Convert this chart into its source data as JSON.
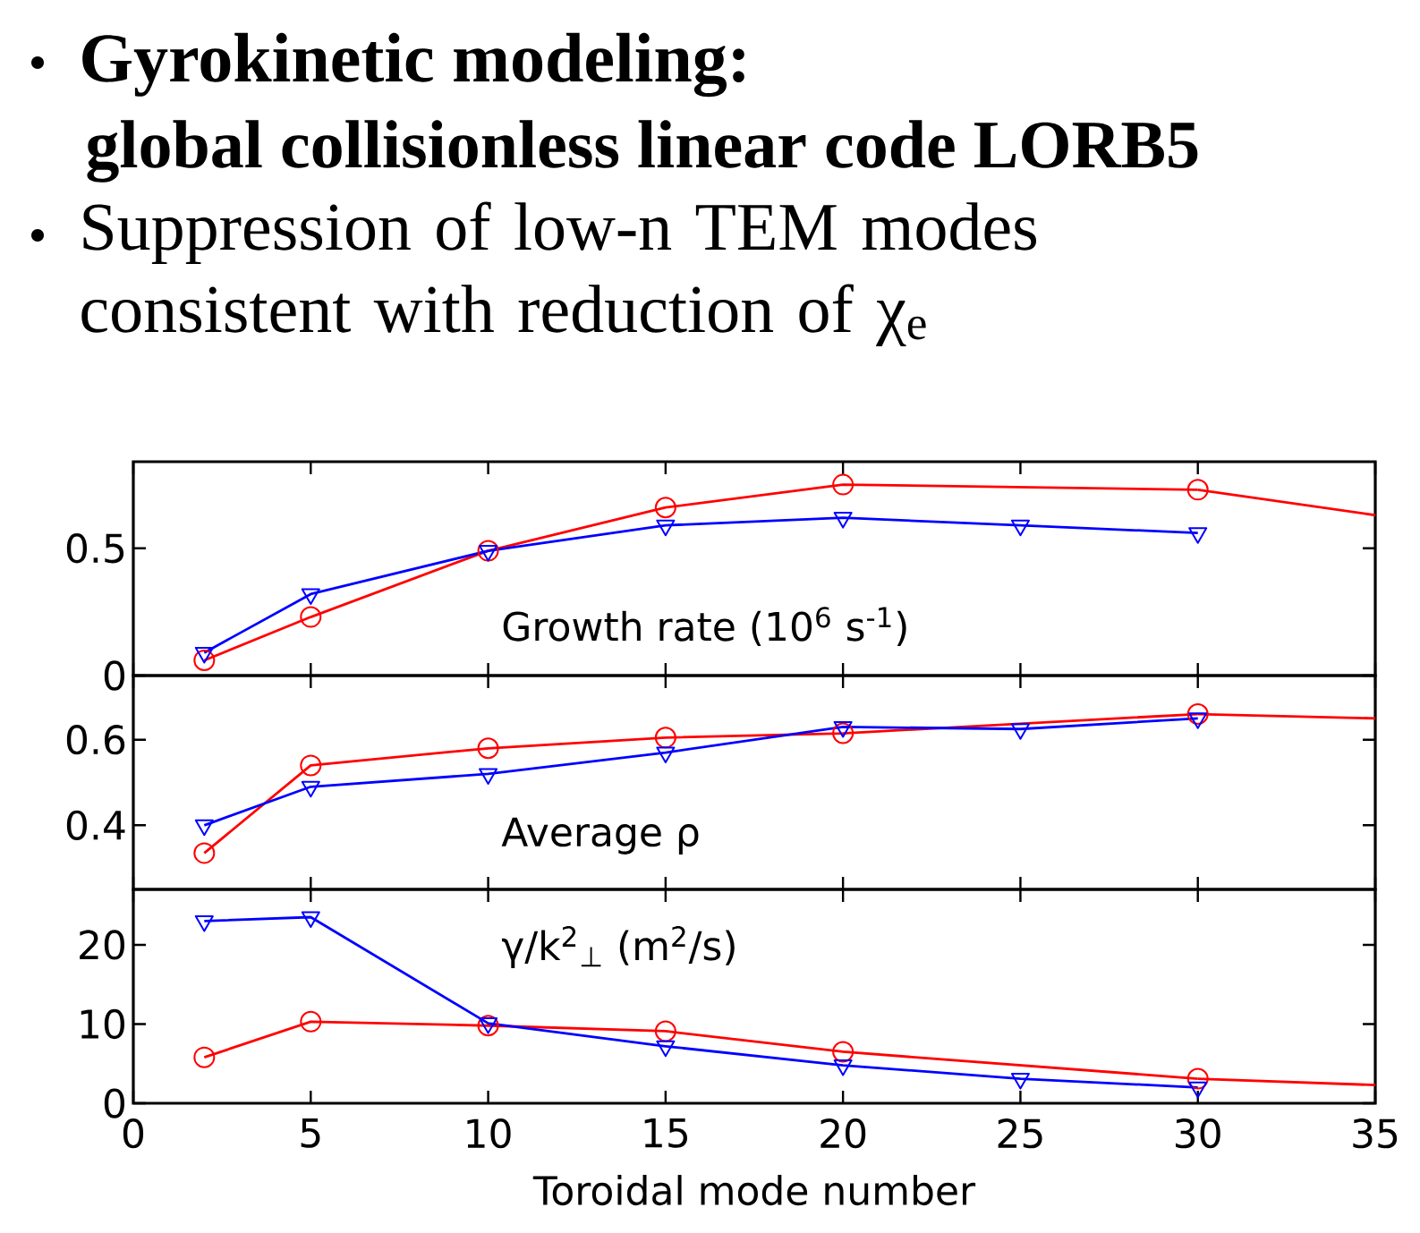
{
  "chart_data": [
    {
      "type": "other",
      "title": "Gyrokinetic modeling:",
      "subtitle": "global collisionless linear code LORB5",
      "annotations": [
        "Suppression of low-n TEM modes consistent with reduction of χ$_{e}$"
      ]
    },
    {
      "type": "line",
      "xlim": [
        0,
        35
      ],
      "xticks": [
        0,
        5,
        10,
        15,
        20,
        25,
        30,
        35
      ],
      "ylim": [
        0,
        0.84
      ],
      "yticks": [
        0,
        0.5
      ],
      "tick_labels": "y",
      "annotations": [
        "Growth rate (10$^{6}$ s$^{-1}$)"
      ],
      "series": [
        {
          "color": "#ff0000",
          "marker": "circle",
          "x": [
            2,
            5,
            10,
            15,
            20,
            30
          ],
          "values": [
            0.06,
            0.23,
            0.49,
            0.66,
            0.75,
            0.73
          ]
        },
        {
          "color": "#ff0000",
          "marker": "none",
          "x": [
            30,
            35
          ],
          "values": [
            0.73,
            0.63
          ]
        },
        {
          "color": "#0000ff",
          "marker": "triangle",
          "x": [
            2,
            5,
            10,
            15,
            20,
            25,
            30
          ],
          "values": [
            0.09,
            0.32,
            0.49,
            0.59,
            0.62,
            0.59,
            0.56
          ]
        }
      ]
    },
    {
      "type": "line",
      "xlim": [
        0,
        35
      ],
      "xticks": [
        0,
        5,
        10,
        15,
        20,
        25,
        30,
        35
      ],
      "ylim": [
        0.25,
        0.75
      ],
      "yticks": [
        0.4,
        0.6
      ],
      "tick_labels": "y",
      "annotations": [
        "Average ρ"
      ],
      "series": [
        {
          "color": "#ff0000",
          "marker": "circle",
          "x": [
            2,
            5,
            10,
            15,
            20,
            30
          ],
          "values": [
            0.335,
            0.54,
            0.58,
            0.605,
            0.615,
            0.66
          ]
        },
        {
          "color": "#ff0000",
          "marker": "none",
          "x": [
            30,
            35
          ],
          "values": [
            0.66,
            0.65
          ]
        },
        {
          "color": "#0000ff",
          "marker": "triangle",
          "x": [
            2,
            5,
            10,
            15,
            20,
            25,
            30
          ],
          "values": [
            0.4,
            0.49,
            0.52,
            0.57,
            0.63,
            0.625,
            0.65
          ]
        }
      ]
    },
    {
      "type": "line",
      "xlim": [
        0,
        35
      ],
      "xticks": [
        0,
        5,
        10,
        15,
        20,
        25,
        30,
        35
      ],
      "ylim": [
        0,
        27
      ],
      "yticks": [
        0,
        10,
        20
      ],
      "xlabel": "Toroidal mode number",
      "annotations": [
        "γ/k$^{2}$$_{⊥}$ (m$^{2}$/s)"
      ],
      "series": [
        {
          "color": "#ff0000",
          "marker": "circle",
          "x": [
            2,
            5,
            10,
            15,
            20,
            30
          ],
          "values": [
            5.8,
            10.3,
            9.8,
            9.1,
            6.5,
            3.1
          ]
        },
        {
          "color": "#ff0000",
          "marker": "none",
          "x": [
            30,
            35
          ],
          "values": [
            3.1,
            2.3
          ]
        },
        {
          "color": "#0000ff",
          "marker": "triangle",
          "x": [
            2,
            5,
            10,
            15,
            20,
            25,
            30
          ],
          "values": [
            23,
            23.5,
            10.1,
            7.2,
            4.8,
            3.1,
            2
          ]
        }
      ]
    }
  ]
}
